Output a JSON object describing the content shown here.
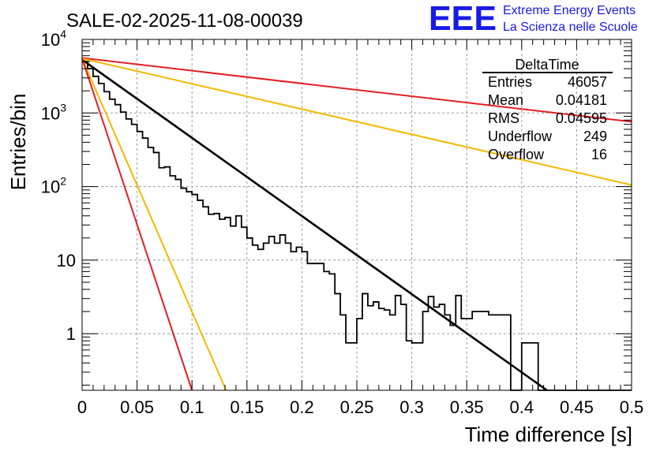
{
  "chart_data": {
    "type": "line",
    "title": "SALE-02-2025-11-08-00039",
    "xlabel": "Time difference [s]",
    "ylabel": "Entries/bin",
    "xlim": [
      0,
      0.5
    ],
    "ylim": [
      0.17,
      10000
    ],
    "yscale": "log",
    "grid": true,
    "x_ticks": [
      {
        "v": 0,
        "label": "0"
      },
      {
        "v": 0.05,
        "label": "0.05"
      },
      {
        "v": 0.1,
        "label": "0.1"
      },
      {
        "v": 0.15,
        "label": "0.15"
      },
      {
        "v": 0.2,
        "label": "0.2"
      },
      {
        "v": 0.25,
        "label": "0.25"
      },
      {
        "v": 0.3,
        "label": "0.3"
      },
      {
        "v": 0.35,
        "label": "0.35"
      },
      {
        "v": 0.4,
        "label": "0.4"
      },
      {
        "v": 0.45,
        "label": "0.45"
      },
      {
        "v": 0.5,
        "label": "0.5"
      }
    ],
    "y_ticks": [
      {
        "v": 1,
        "base": "1",
        "exp": ""
      },
      {
        "v": 10,
        "base": "10",
        "exp": ""
      },
      {
        "v": 100,
        "base": "10",
        "exp": "2"
      },
      {
        "v": 1000,
        "base": "10",
        "exp": "3"
      },
      {
        "v": 10000,
        "base": "10",
        "exp": "4"
      }
    ],
    "series": [
      {
        "name": "DeltaTime",
        "kind": "histogram",
        "color": "#000000",
        "bin_width": 0.005,
        "values": [
          5000,
          4000,
          3150,
          2520,
          1950,
          1540,
          1300,
          1030,
          830,
          700,
          560,
          455,
          340,
          290,
          180,
          185,
          140,
          125,
          95,
          85,
          78,
          65,
          53,
          42,
          43,
          36,
          38,
          29,
          40,
          28,
          20,
          16,
          14,
          17,
          21,
          17,
          22,
          17,
          13,
          15,
          13,
          9,
          9,
          9,
          7,
          6.5,
          3.5,
          1.8,
          0.75,
          0.75,
          1.6,
          3.5,
          2.4,
          2.7,
          2.2,
          2.1,
          1.8,
          3.3,
          2.5,
          0.8,
          0.75,
          0.75,
          2.0,
          3.2,
          2.3,
          2.5,
          1.8,
          1.3,
          3.3,
          1.6,
          1.6,
          2.0,
          2.0,
          2.0,
          1.8,
          1.8,
          1.8,
          1.8,
          0.17,
          0.17,
          0.75,
          0.75,
          0.75,
          0.17,
          0.17,
          0.17,
          0.17,
          0.17,
          0.17,
          0.17,
          0.17,
          0.17,
          0.17,
          0.17,
          0.17,
          0.17,
          0.17,
          0.17,
          0.17,
          0.17
        ]
      },
      {
        "name": "fit-black",
        "kind": "exponential",
        "color": "#000000",
        "x0": 0,
        "y0": 5300,
        "x1": 0.423,
        "y1": 0.17
      },
      {
        "name": "band-red-upper",
        "kind": "exponential",
        "color": "#e31e24",
        "x0": 0,
        "y0": 5600,
        "x1": 0.5,
        "y1": 760
      },
      {
        "name": "band-yellow-upper",
        "kind": "exponential",
        "color": "#f5b800",
        "x0": 0,
        "y0": 5500,
        "x1": 0.5,
        "y1": 105
      },
      {
        "name": "band-yellow-lower",
        "kind": "exponential",
        "color": "#f5b800",
        "x0": 0,
        "y0": 5500,
        "x1": 0.131,
        "y1": 0.17
      },
      {
        "name": "band-red-lower",
        "kind": "exponential",
        "color": "#e31e24",
        "x0": 0,
        "y0": 5500,
        "x1": 0.1,
        "y1": 0.17
      }
    ],
    "stats_box": {
      "title": "DeltaTime",
      "rows": [
        {
          "label": "Entries",
          "value": "46057"
        },
        {
          "label": "Mean",
          "value": "0.04181"
        },
        {
          "label": "RMS",
          "value": "0.04595"
        },
        {
          "label": "Underflow",
          "value": "249"
        },
        {
          "label": "Overflow",
          "value": "16"
        }
      ]
    }
  },
  "logo": {
    "text": "EEE",
    "line1": "Extreme Energy Events",
    "line2": "La Scienza nelle Scuole",
    "color": "#1a1ae6"
  }
}
